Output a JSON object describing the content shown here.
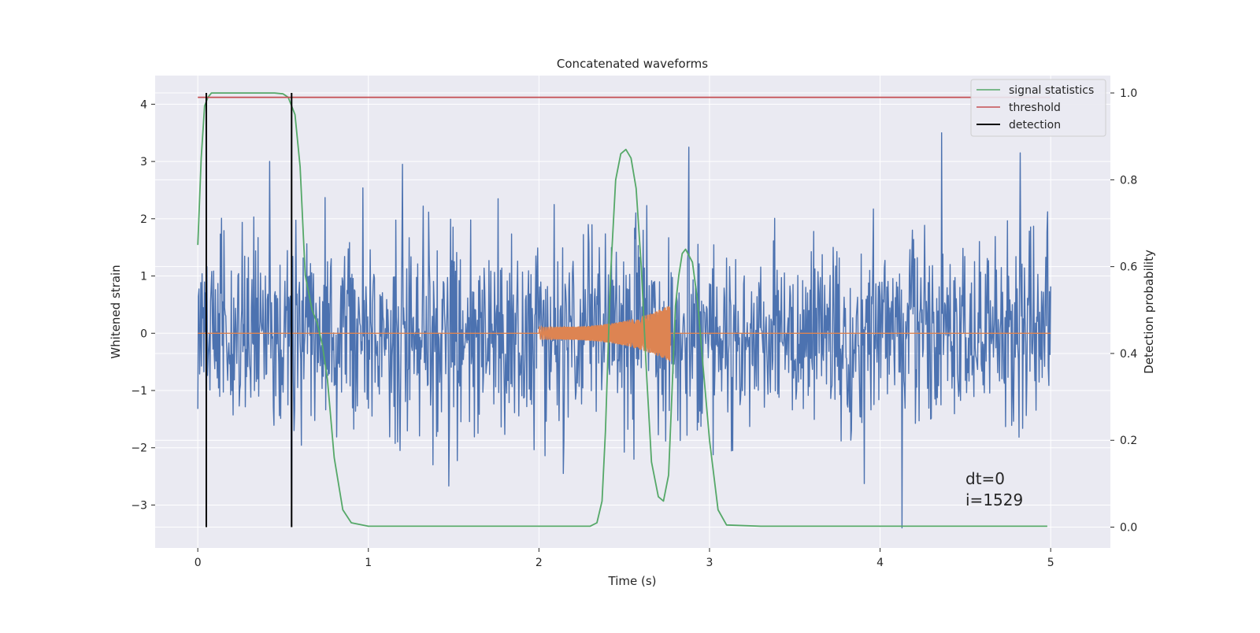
{
  "chart_data": {
    "type": "line",
    "title": "Concatenated waveforms",
    "xlabel": "Time (s)",
    "ylabel": "Whitened strain",
    "y2label": "Detection probability",
    "xlim": [
      -0.25,
      5.35
    ],
    "ylim": [
      -3.75,
      4.5
    ],
    "y2lim": [
      -0.048,
      1.04
    ],
    "xticks": [
      0,
      1,
      2,
      3,
      4,
      5
    ],
    "xtick_labels": [
      "0",
      "1",
      "2",
      "3",
      "4",
      "5"
    ],
    "yticks": [
      -3,
      -2,
      -1,
      0,
      1,
      2,
      3,
      4
    ],
    "ytick_labels": [
      "−3",
      "−2",
      "−1",
      "0",
      "1",
      "2",
      "3",
      "4"
    ],
    "y2ticks": [
      0.0,
      0.2,
      0.4,
      0.6,
      0.8,
      1.0
    ],
    "y2tick_labels": [
      "0.0",
      "0.2",
      "0.4",
      "0.6",
      "0.8",
      "1.0"
    ],
    "grid": true,
    "legend_position": "top-right",
    "legend": [
      {
        "label": "signal statistics",
        "color": "#55a868"
      },
      {
        "label": "threshold",
        "color": "#c44e52"
      },
      {
        "label": "detection",
        "color": "#000000"
      }
    ],
    "series": [
      {
        "name": "",
        "color": "#4c72b0",
        "axis": "left",
        "kind": "noise",
        "x_range": [
          0,
          5
        ],
        "envelope": [
          -3.4,
          3.5
        ],
        "spikes": [
          [
            0.05,
            -2.4
          ],
          [
            0.42,
            3.0
          ],
          [
            0.55,
            -3.2
          ],
          [
            1.2,
            2.95
          ],
          [
            2.88,
            3.25
          ],
          [
            4.13,
            -3.4
          ],
          [
            4.36,
            3.5
          ],
          [
            4.82,
            3.15
          ]
        ]
      },
      {
        "name": "",
        "color": "#dd8452",
        "axis": "left",
        "kind": "chirp",
        "x_range": [
          0,
          5
        ],
        "chirp_start": 2.0,
        "chirp_end": 2.77,
        "chirp_peak_amplitude": 0.5
      },
      {
        "name": "signal statistics",
        "color": "#55a868",
        "axis": "right",
        "x": [
          0.0,
          0.02,
          0.04,
          0.06,
          0.08,
          0.1,
          0.2,
          0.3,
          0.45,
          0.5,
          0.53,
          0.57,
          0.6,
          0.63,
          0.67,
          0.7,
          0.73,
          0.76,
          0.8,
          0.85,
          0.9,
          1.0,
          1.5,
          2.0,
          2.3,
          2.34,
          2.37,
          2.39,
          2.42,
          2.45,
          2.48,
          2.51,
          2.54,
          2.57,
          2.6,
          2.63,
          2.66,
          2.7,
          2.73,
          2.76,
          2.78,
          2.8,
          2.82,
          2.84,
          2.86,
          2.9,
          2.93,
          2.96,
          3.0,
          3.05,
          3.1,
          3.3,
          3.8,
          4.5,
          4.98
        ],
        "y": [
          0.65,
          0.85,
          0.97,
          0.99,
          1.0,
          1.0,
          1.0,
          1.0,
          1.0,
          0.998,
          0.99,
          0.95,
          0.83,
          0.58,
          0.5,
          0.47,
          0.42,
          0.34,
          0.16,
          0.04,
          0.01,
          0.002,
          0.002,
          0.002,
          0.002,
          0.01,
          0.06,
          0.22,
          0.58,
          0.8,
          0.86,
          0.87,
          0.85,
          0.78,
          0.6,
          0.36,
          0.15,
          0.07,
          0.06,
          0.12,
          0.31,
          0.51,
          0.58,
          0.63,
          0.64,
          0.61,
          0.52,
          0.38,
          0.2,
          0.04,
          0.005,
          0.002,
          0.002,
          0.002,
          0.002
        ]
      },
      {
        "name": "threshold",
        "color": "#c44e52",
        "axis": "right",
        "x": [
          0,
          5
        ],
        "y": [
          0.99,
          0.99
        ]
      },
      {
        "name": "detection",
        "color": "#000000",
        "axis": "right",
        "kind": "vlines",
        "x": [
          0.05,
          0.55
        ],
        "y": [
          0.0,
          1.0
        ]
      }
    ],
    "annotations": [
      "dt=0",
      "i=1529"
    ],
    "colors": {
      "background": "#eaeaf2",
      "grid": "#ffffff",
      "text": "#262626"
    }
  }
}
